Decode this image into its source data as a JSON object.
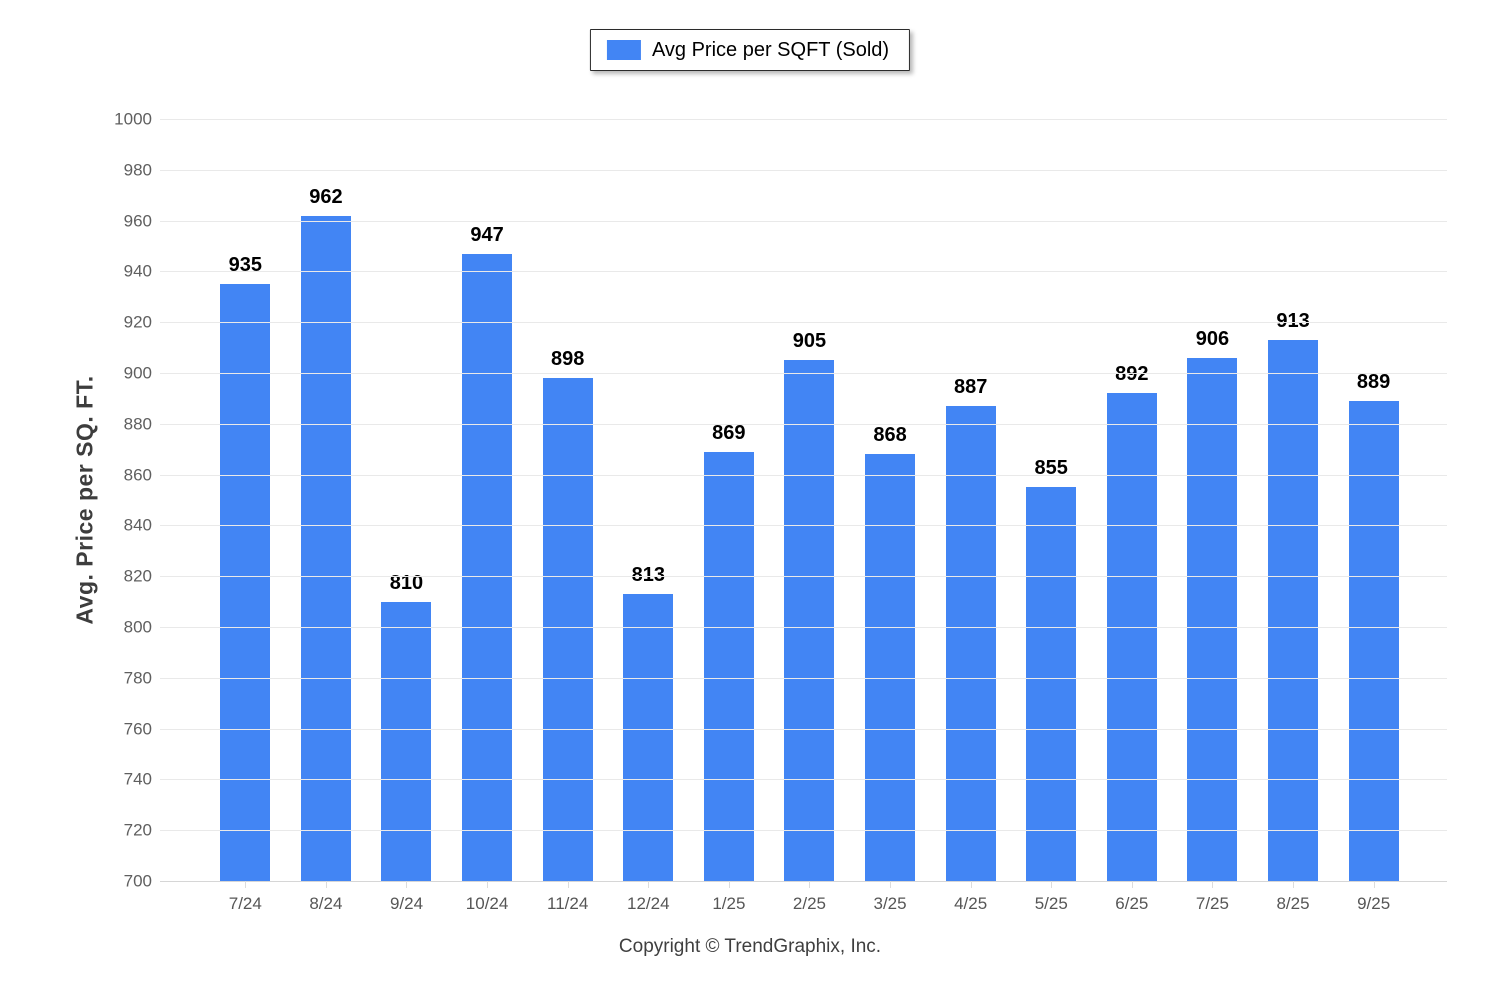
{
  "legend": {
    "label": "Avg Price per SQFT (Sold)"
  },
  "footer": {
    "copyright": "Copyright © TrendGraphix, Inc."
  },
  "colors": {
    "bar": "#4285F4",
    "gridline": "#e9e9e9",
    "axis_line": "#d6d6d6",
    "value_label": "#000000",
    "tick_label": "#5f5f5f"
  },
  "chart_data": {
    "type": "bar",
    "title": "",
    "series_name": "Avg Price per SQFT (Sold)",
    "categories": [
      "7/24",
      "8/24",
      "9/24",
      "10/24",
      "11/24",
      "12/24",
      "1/25",
      "2/25",
      "3/25",
      "4/25",
      "5/25",
      "6/25",
      "7/25",
      "8/25",
      "9/25"
    ],
    "values": [
      935,
      962,
      810,
      947,
      898,
      813,
      869,
      905,
      868,
      887,
      855,
      892,
      906,
      913,
      889
    ],
    "xlabel": "",
    "ylabel": "Avg. Price per SQ. FT.",
    "ylim": [
      700,
      1000
    ],
    "yticks": [
      700,
      720,
      740,
      760,
      780,
      800,
      820,
      840,
      860,
      880,
      900,
      920,
      940,
      960,
      980,
      1000
    ],
    "grid": "horizontal",
    "legend_position": "top-center",
    "value_labels": true
  }
}
